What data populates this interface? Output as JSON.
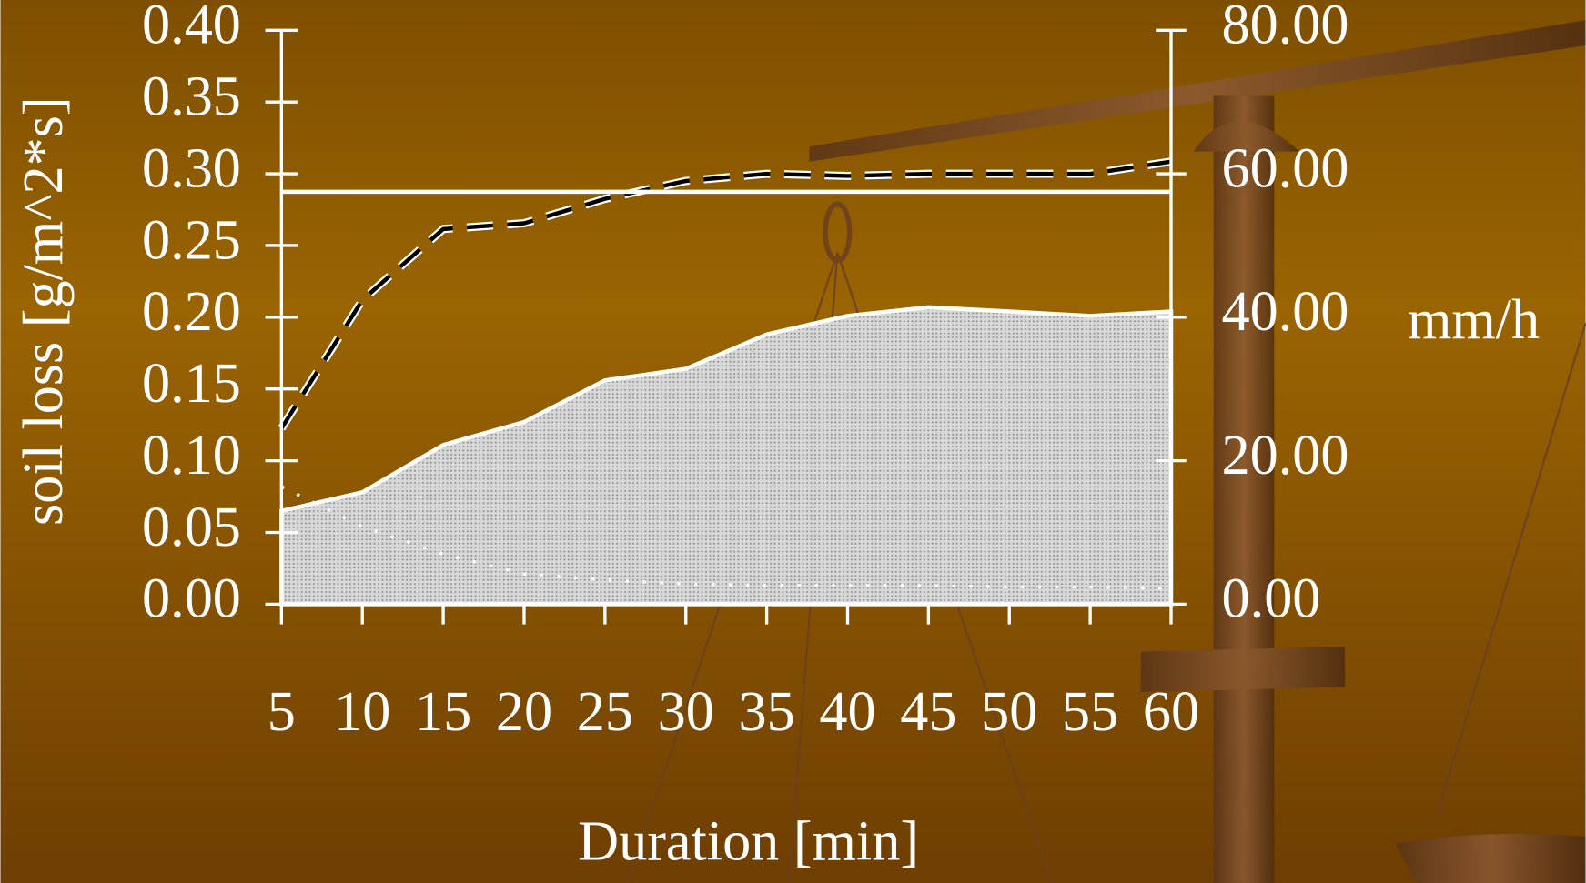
{
  "chart_data": {
    "type": "line",
    "y_label": "soil loss [g/m^2*s]",
    "x_label": "Duration [min]",
    "y2_label": "mm/h",
    "categories": [
      "5",
      "10",
      "15",
      "20",
      "25",
      "30",
      "35",
      "40",
      "45",
      "50",
      "55",
      "60"
    ],
    "ylim": [
      0,
      0.4
    ],
    "yticks": [
      {
        "value": 0,
        "label": "0.00"
      },
      {
        "value": 0.05,
        "label": "0.05"
      },
      {
        "value": 0.1,
        "label": "0.10"
      },
      {
        "value": 0.15,
        "label": "0.15"
      },
      {
        "value": 0.2,
        "label": "0.20"
      },
      {
        "value": 0.25,
        "label": "0.25"
      },
      {
        "value": 0.3,
        "label": "0.30"
      },
      {
        "value": 0.35,
        "label": "0.35"
      },
      {
        "value": 0.4,
        "label": "0.40"
      }
    ],
    "y2lim": [
      0,
      80
    ],
    "y2ticks": [
      {
        "value": 0,
        "label": "0.00"
      },
      {
        "value": 20,
        "label": "20.00"
      },
      {
        "value": 40,
        "label": "40.00"
      },
      {
        "value": 60,
        "label": "60.00"
      },
      {
        "value": 80,
        "label": "80.00"
      }
    ],
    "series": [
      {
        "kind": "area",
        "color": "#c4c4c4",
        "axis": "y",
        "values": [
          0.065,
          0.078,
          0.111,
          0.127,
          0.156,
          0.164,
          0.188,
          0.201,
          0.207,
          0.204,
          0.201,
          0.204
        ]
      },
      {
        "kind": "line",
        "dash": "dashed",
        "color": "#000000",
        "axis": "y2",
        "values": [
          24.5,
          42.4,
          52.3,
          53.1,
          56.5,
          59.0,
          60.0,
          59.7,
          60.0,
          60.0,
          60.0,
          61.7
        ]
      },
      {
        "kind": "line",
        "dash": "solid",
        "color": "#ffffff",
        "axis": "y2",
        "values": [
          57.5,
          57.5,
          57.5,
          57.5,
          57.5,
          57.5,
          57.5,
          57.5,
          57.5,
          57.5,
          57.5,
          57.5
        ]
      },
      {
        "kind": "line",
        "dash": "dotted",
        "color": "#ffffff",
        "axis": "y",
        "values": [
          0.082,
          0.054,
          0.035,
          0.021,
          0.017,
          0.014,
          0.013,
          0.013,
          0.013,
          0.012,
          0.012,
          0.011
        ]
      }
    ]
  }
}
